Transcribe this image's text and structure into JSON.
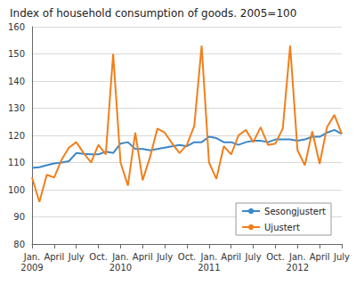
{
  "chart_data": {
    "type": "line",
    "title": "Index of household consumption of goods. 2005=100",
    "categories": [
      "Jan. 2009",
      null,
      null,
      "April",
      null,
      null,
      "July",
      null,
      null,
      "Oct.",
      null,
      null,
      "Jan. 2010",
      null,
      null,
      "April",
      null,
      null,
      "July",
      null,
      null,
      "Oct.",
      null,
      null,
      "Jan. 2011",
      null,
      null,
      "April",
      null,
      null,
      "July",
      null,
      null,
      "Oct.",
      null,
      null,
      "Jan. 2012",
      null,
      null,
      "April",
      null,
      null,
      "July"
    ],
    "series": [
      {
        "name": "Sesongjustert",
        "color": "#3a87c8",
        "values": [
          108,
          108.3,
          109,
          109.7,
          110,
          110.5,
          113.5,
          113.2,
          113,
          113,
          114,
          113.5,
          117,
          117.5,
          115,
          115,
          114.5,
          115,
          115.5,
          116,
          116.5,
          116,
          117.5,
          117.5,
          119.5,
          119,
          117.5,
          117.5,
          116.5,
          117.5,
          118,
          118,
          117.5,
          118.5,
          118.5,
          118.5,
          118,
          118.5,
          119.5,
          119.5,
          121,
          122,
          120.5
        ]
      },
      {
        "name": "Ujustert",
        "color": "#f07f1b",
        "values": [
          104.5,
          95.5,
          105.5,
          104.5,
          111,
          115.5,
          117.5,
          113.5,
          110,
          116.5,
          113,
          150,
          110,
          101.5,
          121,
          103.5,
          112,
          122.5,
          121,
          117,
          113.5,
          116.5,
          123.5,
          153,
          110,
          104,
          116,
          113,
          120,
          122,
          117.5,
          123,
          116.5,
          117,
          122.5,
          153,
          114.5,
          109,
          121.5,
          109.5,
          123,
          127.5,
          120.5
        ]
      }
    ],
    "ylim": [
      80,
      160
    ],
    "yticks": [
      80,
      90,
      100,
      110,
      120,
      130,
      140,
      150,
      160
    ],
    "grid": true,
    "legend": "lower right"
  }
}
